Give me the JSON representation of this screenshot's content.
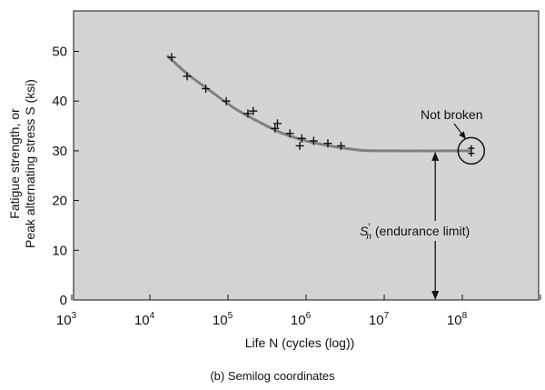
{
  "chart_data": {
    "type": "scatter",
    "title": "",
    "caption": "(b) Semilog coordinates",
    "xlabel": "Life N (cycles (log))",
    "ylabel_line1": "Fatigue strength, or",
    "ylabel_line2": "Peak alternating stress S (ksi)",
    "x_scale": "log",
    "xlim": [
      1000,
      1000000000
    ],
    "ylim": [
      0,
      60
    ],
    "x_ticks": [
      {
        "base": "10",
        "exp": "3",
        "value": 1000
      },
      {
        "base": "10",
        "exp": "4",
        "value": 10000
      },
      {
        "base": "10",
        "exp": "5",
        "value": 100000
      },
      {
        "base": "10",
        "exp": "6",
        "value": 1000000
      },
      {
        "base": "10",
        "exp": "7",
        "value": 10000000
      },
      {
        "base": "10",
        "exp": "8",
        "value": 100000000
      }
    ],
    "y_ticks": [
      "0",
      "10",
      "20",
      "30",
      "40",
      "50"
    ],
    "y_tick_values": [
      0,
      10,
      20,
      30,
      40,
      50
    ],
    "grid": false,
    "plot_background": "#d4d4d4",
    "curve_color": "#808080",
    "points": [
      {
        "x": 19000,
        "y": 48.8
      },
      {
        "x": 30000,
        "y": 45
      },
      {
        "x": 52000,
        "y": 42.5
      },
      {
        "x": 95000,
        "y": 40
      },
      {
        "x": 180000,
        "y": 37.5
      },
      {
        "x": 210000,
        "y": 38
      },
      {
        "x": 400000,
        "y": 34.5
      },
      {
        "x": 430000,
        "y": 35.5
      },
      {
        "x": 620000,
        "y": 33.5
      },
      {
        "x": 880000,
        "y": 32.5
      },
      {
        "x": 830000,
        "y": 31
      },
      {
        "x": 1250000,
        "y": 32
      },
      {
        "x": 1900000,
        "y": 31.5
      },
      {
        "x": 2800000,
        "y": 31
      }
    ],
    "runout_points": [
      {
        "x": 130000000,
        "y": 30.5
      },
      {
        "x": 130000000,
        "y": 29.5
      }
    ],
    "curve": [
      {
        "x": 17000,
        "y": 49
      },
      {
        "x": 30000,
        "y": 45.5
      },
      {
        "x": 60000,
        "y": 42
      },
      {
        "x": 120000,
        "y": 38.6
      },
      {
        "x": 250000,
        "y": 35.8
      },
      {
        "x": 500000,
        "y": 33.5
      },
      {
        "x": 1000000,
        "y": 32
      },
      {
        "x": 2000000,
        "y": 31
      },
      {
        "x": 4000000,
        "y": 30.3
      },
      {
        "x": 8000000,
        "y": 30
      },
      {
        "x": 125000000,
        "y": 30
      }
    ],
    "endurance_limit": 30,
    "endurance_marker_x": 45000000,
    "annotations": {
      "not_broken": "Not broken",
      "endurance_symbol": "S",
      "endurance_sub": "n",
      "endurance_prime": "′",
      "endurance_text": " (endurance limit)"
    }
  }
}
